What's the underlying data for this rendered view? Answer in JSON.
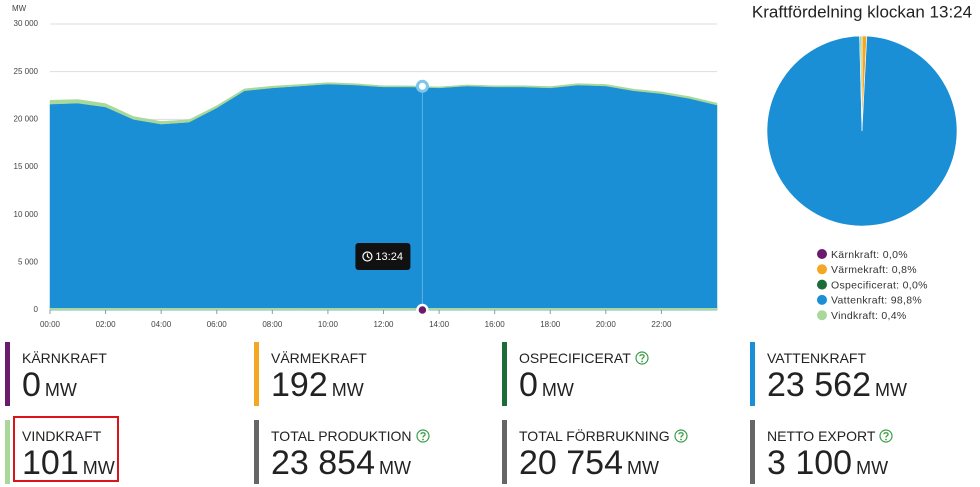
{
  "chart_data": [
    {
      "type": "stacked-area",
      "y_label": "MW",
      "x": [
        0,
        1,
        2,
        3,
        4,
        5,
        6,
        7,
        8,
        9,
        10,
        11,
        12,
        13,
        14,
        15,
        16,
        17,
        18,
        19,
        20,
        21,
        22,
        23,
        24
      ],
      "xlim": [
        0,
        24
      ],
      "xticks": [
        {
          "value": 0,
          "label": "00:00"
        },
        {
          "value": 2,
          "label": "02:00"
        },
        {
          "value": 4,
          "label": "04:00"
        },
        {
          "value": 6,
          "label": "06:00"
        },
        {
          "value": 8,
          "label": "08:00"
        },
        {
          "value": 10,
          "label": "10:00"
        },
        {
          "value": 12,
          "label": "12:00"
        },
        {
          "value": 14,
          "label": "14:00"
        },
        {
          "value": 16,
          "label": "16:00"
        },
        {
          "value": 18,
          "label": "18:00"
        },
        {
          "value": 20,
          "label": "20:00"
        },
        {
          "value": 22,
          "label": "22:00"
        }
      ],
      "ylim": [
        0,
        30000
      ],
      "yticks": [
        0,
        {
          "value": 5000,
          "label": "5 000"
        },
        {
          "value": 10000,
          "label": "10 000"
        },
        {
          "value": 15000,
          "label": "15 000"
        },
        {
          "value": 20000,
          "label": "20 000"
        },
        {
          "value": 25000,
          "label": "25 000"
        },
        {
          "value": 30000,
          "label": "30 000"
        }
      ],
      "grid": true,
      "series": [
        {
          "name": "Vattenkraft",
          "color": "#1a8fd6",
          "values": [
            21600,
            21700,
            21300,
            20000,
            19500,
            19700,
            21200,
            23000,
            23300,
            23500,
            23700,
            23600,
            23400,
            23400,
            23300,
            23500,
            23400,
            23400,
            23300,
            23600,
            23500,
            23000,
            22700,
            22200,
            21500
          ]
        },
        {
          "name": "Vindkraft",
          "color": "#a8d89a",
          "values": [
            400,
            380,
            350,
            300,
            280,
            250,
            230,
            200,
            180,
            160,
            150,
            140,
            120,
            110,
            100,
            110,
            120,
            130,
            140,
            150,
            160,
            170,
            180,
            190,
            200
          ]
        }
      ],
      "cursor": {
        "x": 13.4,
        "label": "13:24"
      }
    },
    {
      "type": "pie",
      "title": "Kraftfördelning klockan 13:24",
      "categories": [
        "Kärnkraft",
        "Värmekraft",
        "Ospecificerat",
        "Vattenkraft",
        "Vindkraft"
      ],
      "values": [
        0,
        0.8,
        0,
        98.8,
        0.4
      ],
      "value_labels": [
        "Kärnkraft: 0,0%",
        "Värmekraft: 0,8%",
        "Ospecificerat: 0,0%",
        "Vattenkraft: 98,8%",
        "Vindkraft: 0,4%"
      ],
      "colors": [
        "#6a1b6e",
        "#f5a623",
        "#1e6b3a",
        "#1a8fd6",
        "#a8d89a"
      ]
    }
  ],
  "tiles": [
    {
      "label": "KÄRNKRAFT",
      "value": "0",
      "unit": "MW",
      "color": "#6a1b6e",
      "help": false,
      "highlighted": false
    },
    {
      "label": "VÄRMEKRAFT",
      "value": "192",
      "unit": "MW",
      "color": "#f5a623",
      "help": false,
      "highlighted": false
    },
    {
      "label": "OSPECIFICERAT",
      "value": "0",
      "unit": "MW",
      "color": "#1e6b3a",
      "help": true,
      "highlighted": false
    },
    {
      "label": "VATTENKRAFT",
      "value": "23 562",
      "unit": "MW",
      "color": "#1a8fd6",
      "help": false,
      "highlighted": false
    },
    {
      "label": "VINDKRAFT",
      "value": "101",
      "unit": "MW",
      "color": "#a8d89a",
      "help": false,
      "highlighted": true
    },
    {
      "label": "TOTAL PRODUKTION",
      "value": "23 854",
      "unit": "MW",
      "color": "#666666",
      "help": true,
      "highlighted": false
    },
    {
      "label": "TOTAL FÖRBRUKNING",
      "value": "20 754",
      "unit": "MW",
      "color": "#666666",
      "help": true,
      "highlighted": false
    },
    {
      "label": "NETTO EXPORT",
      "value": "3 100",
      "unit": "MW",
      "color": "#666666",
      "help": true,
      "highlighted": false
    }
  ]
}
